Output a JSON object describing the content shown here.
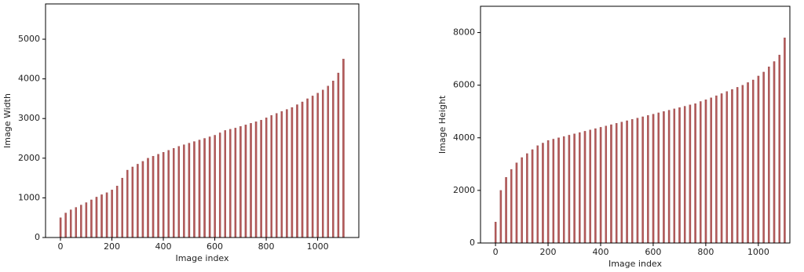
{
  "chart_data": [
    {
      "type": "bar",
      "xlabel": "Image index",
      "ylabel": "Image Width",
      "color": "#b35a5a",
      "x": [
        0,
        20,
        40,
        60,
        80,
        100,
        120,
        140,
        160,
        180,
        200,
        220,
        240,
        260,
        280,
        300,
        320,
        340,
        360,
        380,
        400,
        420,
        440,
        460,
        480,
        500,
        520,
        540,
        560,
        580,
        600,
        620,
        640,
        660,
        680,
        700,
        720,
        740,
        760,
        780,
        800,
        820,
        840,
        860,
        880,
        900,
        920,
        940,
        960,
        980,
        1000,
        1020,
        1040,
        1060,
        1080,
        1100
      ],
      "values": [
        500,
        620,
        700,
        760,
        820,
        880,
        950,
        1020,
        1080,
        1130,
        1200,
        1300,
        1500,
        1700,
        1780,
        1850,
        1920,
        2000,
        2050,
        2100,
        2150,
        2200,
        2250,
        2300,
        2340,
        2380,
        2420,
        2460,
        2500,
        2540,
        2580,
        2640,
        2700,
        2730,
        2760,
        2800,
        2840,
        2880,
        2920,
        2960,
        3020,
        3080,
        3130,
        3180,
        3230,
        3280,
        3350,
        3420,
        3500,
        3570,
        3640,
        3720,
        3820,
        3950,
        4150,
        4500
      ],
      "xlim": [
        -58,
        1160
      ],
      "ylim": [
        0,
        5890
      ],
      "xticks": [
        0,
        200,
        400,
        600,
        800,
        1000
      ],
      "yticks": [
        0,
        1000,
        2000,
        3000,
        4000,
        5000
      ]
    },
    {
      "type": "bar",
      "xlabel": "Image index",
      "ylabel": "Image Height",
      "color": "#b35a5a",
      "x": [
        0,
        20,
        40,
        60,
        80,
        100,
        120,
        140,
        160,
        180,
        200,
        220,
        240,
        260,
        280,
        300,
        320,
        340,
        360,
        380,
        400,
        420,
        440,
        460,
        480,
        500,
        520,
        540,
        560,
        580,
        600,
        620,
        640,
        660,
        680,
        700,
        720,
        740,
        760,
        780,
        800,
        820,
        840,
        860,
        880,
        900,
        920,
        940,
        960,
        980,
        1000,
        1020,
        1040,
        1060,
        1080,
        1100
      ],
      "values": [
        800,
        2000,
        2500,
        2800,
        3050,
        3250,
        3400,
        3550,
        3700,
        3800,
        3900,
        3950,
        4000,
        4050,
        4100,
        4150,
        4200,
        4250,
        4300,
        4350,
        4400,
        4450,
        4500,
        4550,
        4600,
        4650,
        4700,
        4750,
        4800,
        4850,
        4900,
        4950,
        5000,
        5050,
        5100,
        5150,
        5200,
        5250,
        5300,
        5380,
        5450,
        5520,
        5600,
        5680,
        5760,
        5840,
        5920,
        6000,
        6100,
        6200,
        6350,
        6500,
        6700,
        6900,
        7150,
        7800
      ],
      "xlim": [
        -57,
        1120
      ],
      "ylim": [
        0,
        9000
      ],
      "xticks": [
        0,
        200,
        400,
        600,
        800,
        1000
      ],
      "yticks": [
        0,
        2000,
        4000,
        6000,
        8000
      ]
    }
  ]
}
